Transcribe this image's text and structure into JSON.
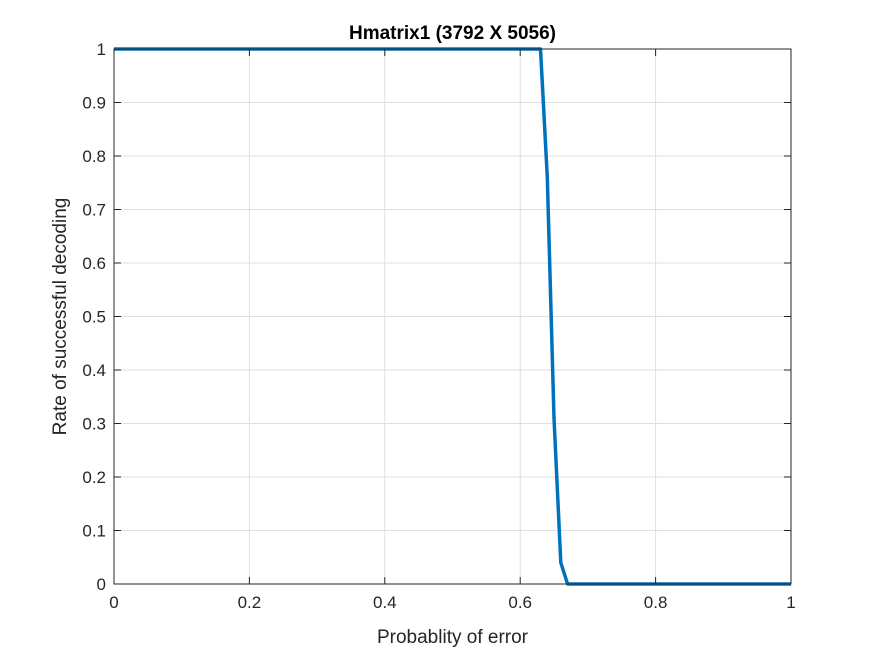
{
  "chart_data": {
    "type": "line",
    "title": "Hmatrix1 (3792 X 5056)",
    "xlabel": "Probablity of error",
    "ylabel": "Rate of successful decoding",
    "xlim": [
      0,
      1
    ],
    "ylim": [
      0,
      1
    ],
    "xticks": [
      0,
      0.2,
      0.4,
      0.6,
      0.8,
      1
    ],
    "xtick_labels": [
      "0",
      "0.2",
      "0.4",
      "0.6",
      "0.8",
      "1"
    ],
    "yticks": [
      0,
      0.1,
      0.2,
      0.3,
      0.4,
      0.5,
      0.6,
      0.7,
      0.8,
      0.9,
      1
    ],
    "ytick_labels": [
      "0",
      "0.1",
      "0.2",
      "0.3",
      "0.4",
      "0.5",
      "0.6",
      "0.7",
      "0.8",
      "0.9",
      "1"
    ],
    "grid": true,
    "box": true,
    "series": [
      {
        "color": "#0072BD",
        "x": [
          0,
          0.63,
          0.64,
          0.65,
          0.66,
          0.67,
          1
        ],
        "y": [
          1,
          1,
          0.76,
          0.31,
          0.04,
          0,
          0
        ]
      }
    ]
  }
}
